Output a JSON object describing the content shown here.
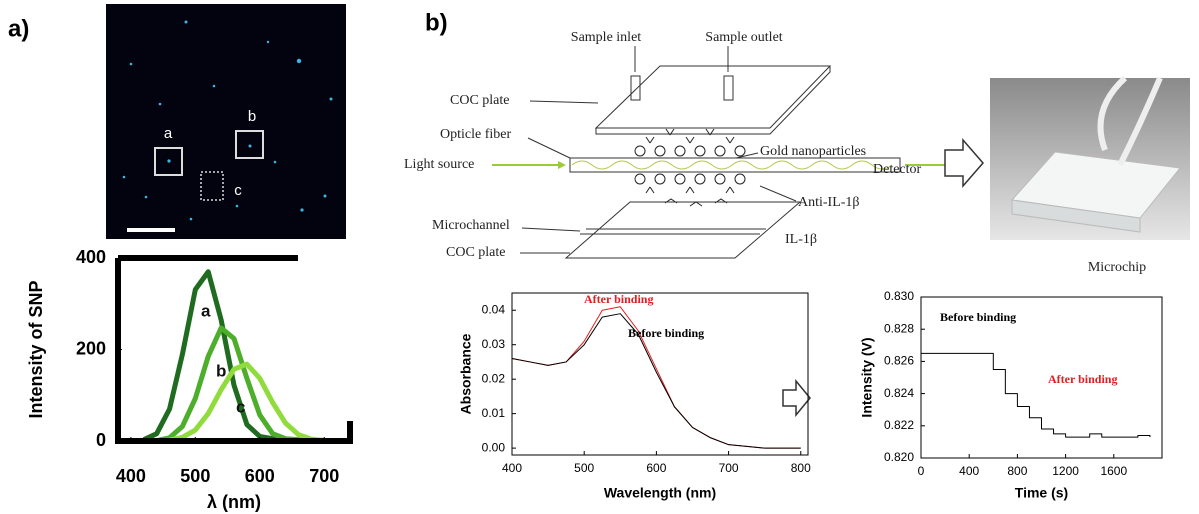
{
  "panel_labels": [
    "a)",
    "b)"
  ],
  "image_labels": [
    "a",
    "b",
    "c"
  ],
  "diagram": {
    "labels": [
      "Sample inlet",
      "Sample outlet",
      "COC plate",
      "Opticle fiber",
      "Gold nanoparticles",
      "Light source",
      "Detector",
      "Anti-IL-1β",
      "Microchannel",
      "IL-1β",
      "COC plate"
    ]
  },
  "photo_caption": "Microchip",
  "chart_data": [
    {
      "type": "line",
      "xlabel": "λ (nm)",
      "ylabel": "Intensity of SNP",
      "x": [
        420,
        440,
        460,
        480,
        500,
        520,
        540,
        560,
        580,
        600,
        620,
        640,
        660,
        680,
        700,
        720
      ],
      "series": [
        {
          "name": "a",
          "color": "#1f6b1f",
          "values": [
            3,
            16,
            70,
            190,
            331,
            370,
            265,
            122,
            36,
            10,
            5,
            3,
            2,
            1,
            1,
            0
          ]
        },
        {
          "name": "b",
          "color": "#4cae2a",
          "values": [
            0,
            1,
            7,
            32,
            93,
            185,
            247,
            224,
            137,
            57,
            16,
            5,
            3,
            2,
            1,
            1
          ]
        },
        {
          "name": "c",
          "color": "#8fdc3c",
          "values": [
            0,
            0,
            2,
            8,
            24,
            60,
            112,
            157,
            168,
            137,
            84,
            39,
            14,
            4,
            1,
            0
          ]
        }
      ],
      "xlim": [
        380,
        740
      ],
      "xticks": [
        400,
        500,
        600,
        700
      ],
      "ylim": [
        0,
        400
      ],
      "yticks": [
        0,
        200,
        400
      ]
    },
    {
      "type": "line",
      "xlabel": "Wavelength (nm)",
      "ylabel": "Absorbance",
      "x": [
        400,
        425,
        450,
        475,
        500,
        525,
        550,
        575,
        600,
        625,
        650,
        675,
        700,
        725,
        750,
        775,
        800
      ],
      "series": [
        {
          "name": "After binding",
          "color": "#e02020",
          "values": [
            0.026,
            0.025,
            0.024,
            0.025,
            0.031,
            0.04,
            0.041,
            0.034,
            0.023,
            0.012,
            0.006,
            0.003,
            0.001,
            0.0005,
            0,
            0,
            0
          ]
        },
        {
          "name": "Before binding",
          "color": "#000000",
          "values": [
            0.026,
            0.025,
            0.024,
            0.025,
            0.03,
            0.038,
            0.039,
            0.033,
            0.022,
            0.012,
            0.006,
            0.003,
            0.001,
            0.0005,
            0,
            0,
            0
          ]
        }
      ],
      "xlim": [
        400,
        810
      ],
      "xticks": [
        400,
        500,
        600,
        700,
        800
      ],
      "ylim": [
        -0.002,
        0.045
      ],
      "yticks": [
        {
          "value": 0,
          "label": "0.00"
        },
        0.01,
        0.02,
        0.03,
        0.04
      ]
    },
    {
      "type": "line",
      "step": true,
      "xlabel": "Time (s)",
      "ylabel": "Intensity (V)",
      "x": [
        0,
        100,
        200,
        300,
        400,
        500,
        600,
        700,
        800,
        900,
        1000,
        1100,
        1200,
        1300,
        1400,
        1500,
        1600,
        1700,
        1800,
        1900
      ],
      "series": [
        {
          "color": "#000000",
          "values": [
            0.8265,
            0.8265,
            0.8265,
            0.8265,
            0.8265,
            0.8265,
            0.8255,
            0.824,
            0.8232,
            0.8225,
            0.8218,
            0.8215,
            0.8213,
            0.8213,
            0.8215,
            0.8213,
            0.8213,
            0.8213,
            0.8214,
            0.8213
          ]
        }
      ],
      "annotations": [
        {
          "text": "Before binding",
          "color": "#000000"
        },
        {
          "text": "After binding",
          "color": "#e02020"
        }
      ],
      "xlim": [
        0,
        2000
      ],
      "xticks": [
        0,
        400,
        800,
        1200,
        1600
      ],
      "ylim": [
        0.82,
        0.83
      ],
      "yticks": [
        {
          "value": 0.82,
          "label": "0.820"
        },
        0.822,
        0.824,
        0.826,
        0.828,
        {
          "value": 0.83,
          "label": "0.830"
        }
      ]
    }
  ]
}
